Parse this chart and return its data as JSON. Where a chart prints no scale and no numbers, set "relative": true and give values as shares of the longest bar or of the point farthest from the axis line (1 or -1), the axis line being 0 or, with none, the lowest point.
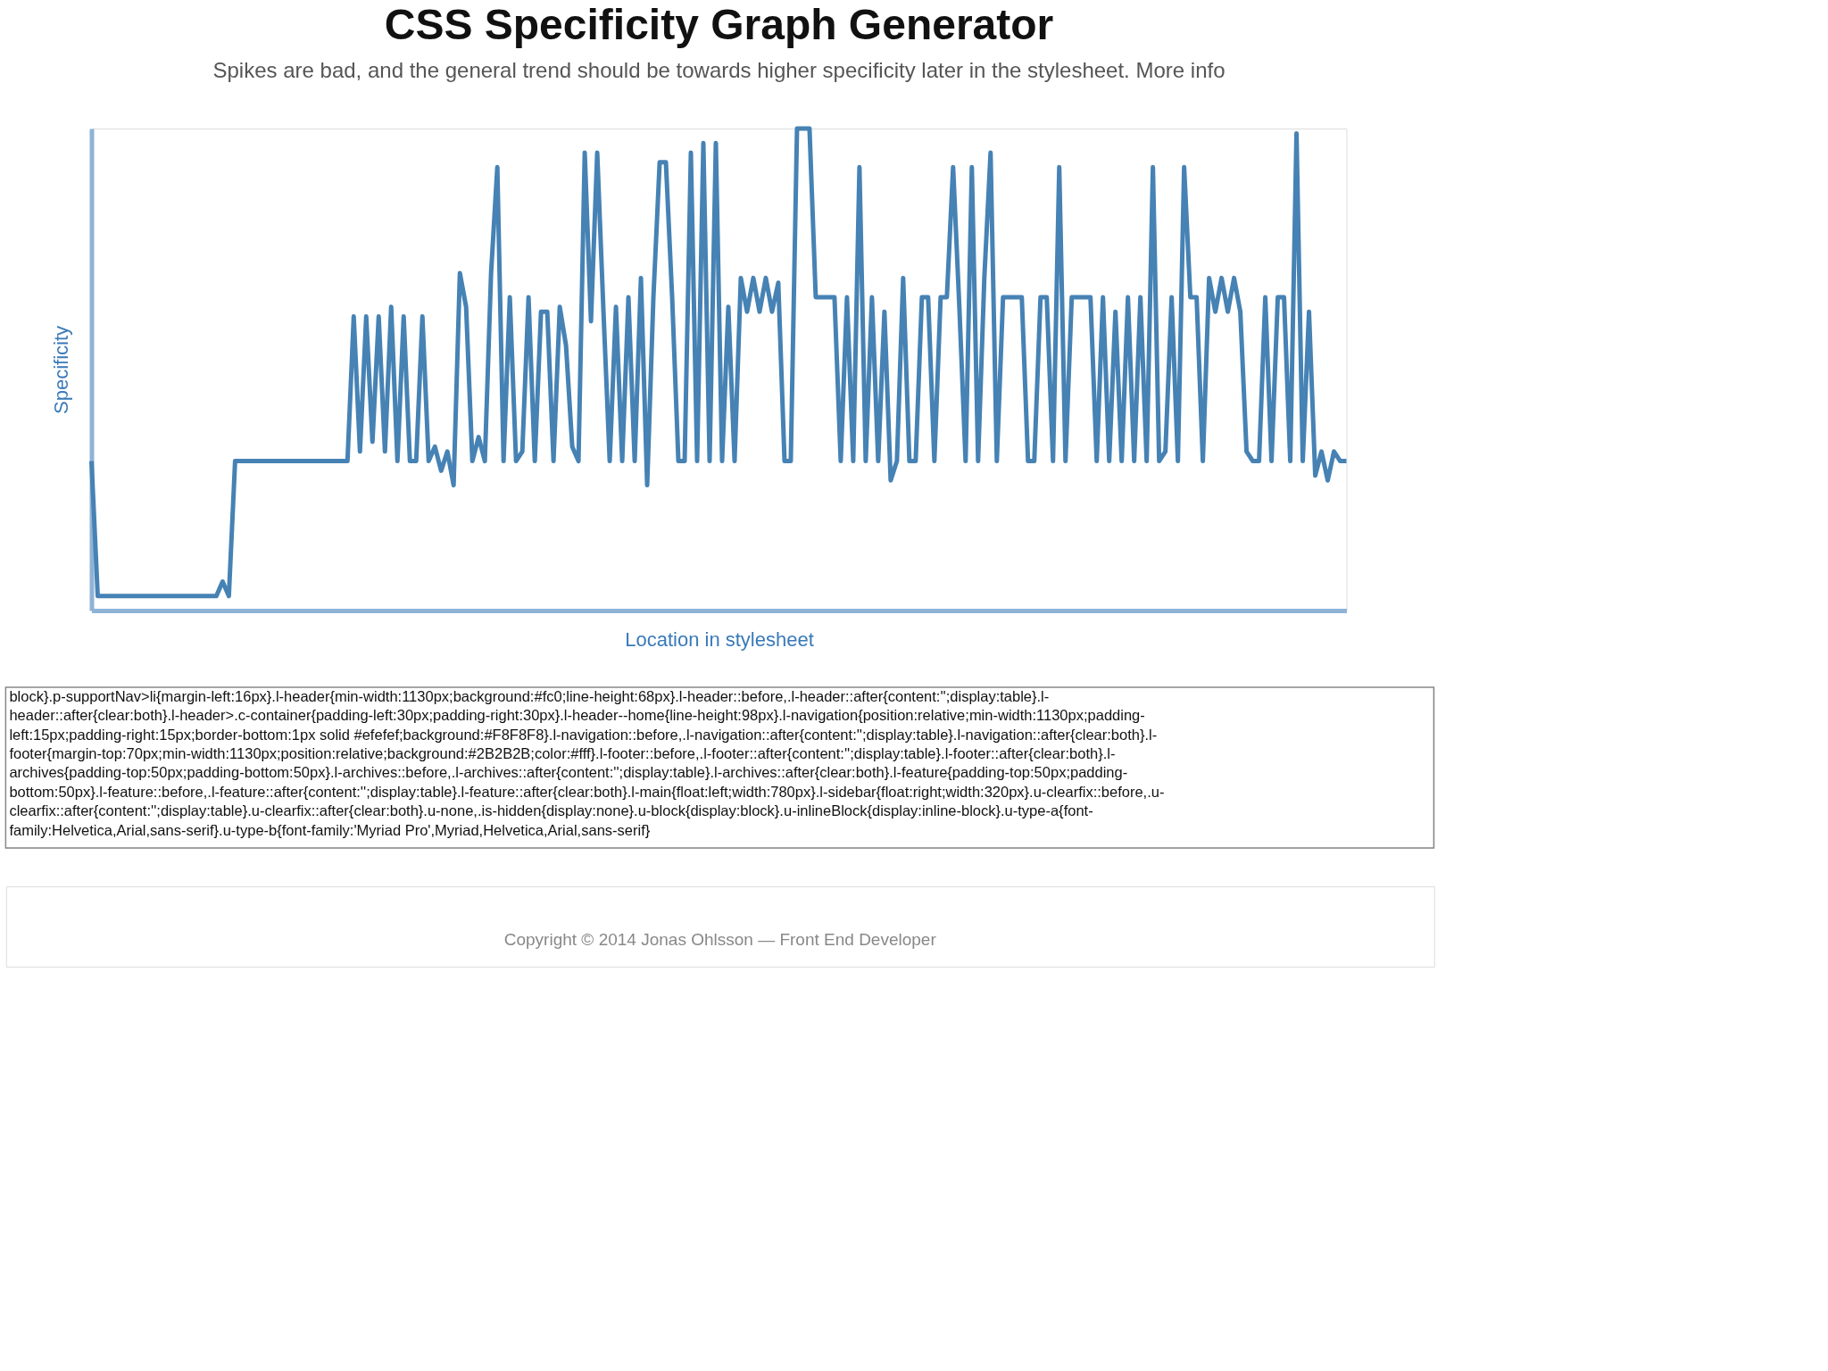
{
  "chart_data": {
    "type": "line",
    "title": "CSS Specificity Graph Generator",
    "subtitle": "Spikes are bad, and the general trend should be towards higher specificity later in the stylesheet. More info",
    "xlabel": "Location in stylesheet",
    "ylabel": "Specificity",
    "relative": true,
    "color": "#4682b4",
    "grid": false,
    "categories": [
      null,
      null,
      null,
      null,
      null,
      null,
      null,
      null,
      null,
      null,
      null,
      null,
      null,
      null,
      null,
      null,
      null,
      null,
      null,
      null,
      null,
      null,
      null,
      null,
      null,
      null,
      null,
      null,
      null,
      null,
      null,
      null,
      null,
      null,
      null,
      null,
      null,
      null,
      null,
      null,
      null,
      null,
      null,
      null,
      null,
      null,
      null,
      null,
      null,
      null,
      null,
      null,
      null,
      null,
      null,
      null,
      null,
      null,
      null,
      null,
      null,
      null,
      null,
      null,
      null,
      null,
      null,
      null,
      null,
      null,
      null,
      null,
      null,
      null,
      null,
      null,
      null,
      null,
      null,
      null,
      null,
      null,
      null,
      null,
      null,
      null,
      null,
      null,
      null,
      null,
      null,
      null,
      null,
      null,
      null,
      null,
      null,
      null,
      null,
      null,
      null,
      null,
      null,
      null,
      null,
      null,
      null,
      null,
      null,
      null,
      null,
      null,
      null,
      null,
      null,
      null,
      null,
      null,
      null,
      null,
      null,
      null,
      null,
      null,
      null,
      null,
      null,
      null,
      null,
      null,
      null,
      null,
      null,
      null,
      null,
      null,
      null,
      null,
      null,
      null,
      null,
      null,
      null,
      null,
      null,
      null,
      null,
      null,
      null,
      null,
      null,
      null,
      null,
      null,
      null,
      null,
      null,
      null,
      null,
      null,
      null,
      null,
      null,
      null,
      null,
      null,
      null,
      null,
      null,
      null,
      null,
      null,
      null,
      null,
      null,
      null,
      null,
      null,
      null,
      null,
      null,
      null,
      null,
      null,
      null,
      null,
      null,
      null,
      null,
      null,
      null,
      null,
      null,
      null,
      null,
      null,
      null,
      null,
      null,
      null,
      null,
      null
    ],
    "values": [
      0.31,
      0.03,
      0.03,
      0.03,
      0.03,
      0.03,
      0.03,
      0.03,
      0.03,
      0.03,
      0.03,
      0.03,
      0.03,
      0.03,
      0.03,
      0.03,
      0.03,
      0.03,
      0.03,
      0.03,
      0.03,
      0.06,
      0.03,
      0.31,
      0.31,
      0.31,
      0.31,
      0.31,
      0.31,
      0.31,
      0.31,
      0.31,
      0.31,
      0.31,
      0.31,
      0.31,
      0.31,
      0.31,
      0.31,
      0.31,
      0.31,
      0.31,
      0.61,
      0.33,
      0.61,
      0.35,
      0.61,
      0.33,
      0.63,
      0.31,
      0.61,
      0.31,
      0.31,
      0.61,
      0.31,
      0.34,
      0.29,
      0.33,
      0.26,
      0.7,
      0.63,
      0.31,
      0.36,
      0.31,
      0.7,
      0.92,
      0.31,
      0.65,
      0.31,
      0.33,
      0.65,
      0.31,
      0.62,
      0.62,
      0.31,
      0.63,
      0.55,
      0.34,
      0.31,
      0.95,
      0.6,
      0.95,
      0.62,
      0.31,
      0.63,
      0.31,
      0.65,
      0.31,
      0.69,
      0.26,
      0.65,
      0.93,
      0.93,
      0.65,
      0.31,
      0.31,
      0.95,
      0.31,
      0.97,
      0.31,
      0.97,
      0.31,
      0.63,
      0.31,
      0.69,
      0.62,
      0.69,
      0.62,
      0.69,
      0.62,
      0.68,
      0.31,
      0.31,
      1.0,
      1.0,
      1.0,
      0.65,
      0.65,
      0.65,
      0.65,
      0.31,
      0.65,
      0.31,
      0.92,
      0.31,
      0.65,
      0.31,
      0.62,
      0.27,
      0.31,
      0.69,
      0.31,
      0.31,
      0.65,
      0.65,
      0.31,
      0.65,
      0.65,
      0.92,
      0.63,
      0.31,
      0.92,
      0.31,
      0.69,
      0.95,
      0.31,
      0.65,
      0.65,
      0.65,
      0.65,
      0.31,
      0.31,
      0.65,
      0.65,
      0.31,
      0.92,
      0.31,
      0.65,
      0.65,
      0.65,
      0.65,
      0.31,
      0.65,
      0.31,
      0.62,
      0.31,
      0.65,
      0.31,
      0.65,
      0.31,
      0.92,
      0.31,
      0.33,
      0.65,
      0.31,
      0.92,
      0.65,
      0.65,
      0.31,
      0.69,
      0.62,
      0.69,
      0.62,
      0.69,
      0.62,
      0.33,
      0.31,
      0.31,
      0.65,
      0.31,
      0.65,
      0.65,
      0.31,
      0.99,
      0.31,
      0.62,
      0.28,
      0.33,
      0.27,
      0.33,
      0.31,
      0.31
    ],
    "annotations": [
      "block}.p-supportNav>li{margin-left:16px}.l-header{min-width:1130px;background:#fc0;line-height:68px}.l-header::before,.l-header::after{content:'';display:table}.l-",
      "header::after{clear:both}.l-header>.c-container{padding-left:30px;padding-right:30px}.l-header--home{line-height:98px}.l-navigation{position:relative;min-width:1130px;padding-",
      "left:15px;padding-right:15px;border-bottom:1px solid #efefef;background:#F8F8F8}.l-navigation::before,.l-navigation::after{content:'';display:table}.l-navigation::after{clear:both}.l-",
      "footer{margin-top:70px;min-width:1130px;position:relative;background:#2B2B2B;color:#fff}.l-footer::before,.l-footer::after{content:'';display:table}.l-footer::after{clear:both}.l-",
      "archives{padding-top:50px;padding-bottom:50px}.l-archives::before,.l-archives::after{content:'';display:table}.l-archives::after{clear:both}.l-feature{padding-top:50px;padding-",
      "bottom:50px}.l-feature::before,.l-feature::after{content:'';display:table}.l-feature::after{clear:both}.l-main{float:left;width:780px}.l-sidebar{float:right;width:320px}.u-clearfix::before,.u-",
      "clearfix::after{content:'';display:table}.u-clearfix::after{clear:both}.u-none,.is-hidden{display:none}.u-block{display:block}.u-inlineBlock{display:inline-block}.u-type-a{font-",
      "family:Helvetica,Arial,sans-serif}.u-type-b{font-family:'Myriad Pro',Myriad,Helvetica,Arial,sans-serif}",
      "Copyright © 2014 Jonas Ohlsson — Front End Developer"
    ]
  }
}
